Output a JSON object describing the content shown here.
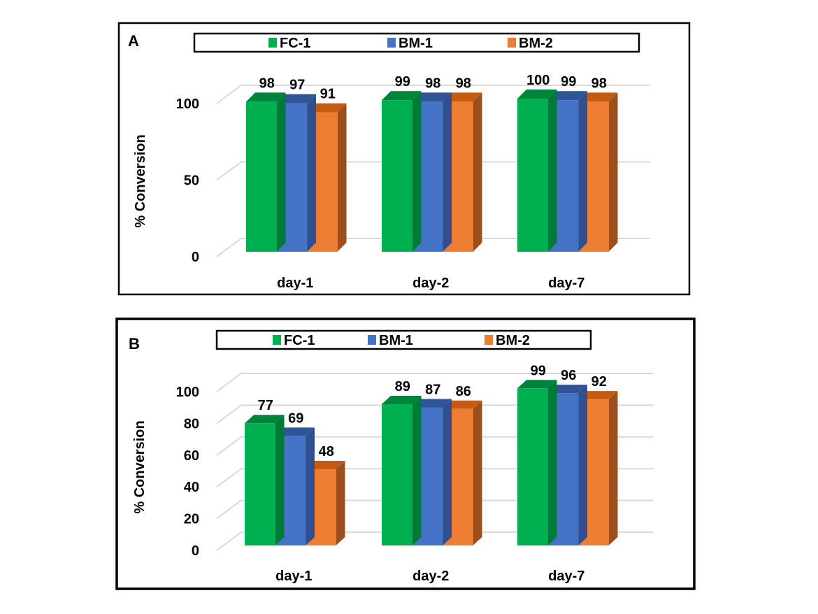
{
  "colors": {
    "FC-1": {
      "front": "#00b050",
      "top": "#00843c",
      "side": "#007a37"
    },
    "BM-1": {
      "front": "#4472c4",
      "top": "#2f5597",
      "side": "#2f4f8f"
    },
    "BM-2": {
      "front": "#ed7d31",
      "top": "#c55a11",
      "side": "#9c4f1c"
    }
  },
  "chart_data": [
    {
      "type": "bar",
      "panel": "A",
      "title": "",
      "xlabel": "",
      "ylabel": "% Conversion",
      "categories": [
        "day-1",
        "day-2",
        "day-7"
      ],
      "series": [
        {
          "name": "FC-1",
          "values": [
            98,
            99,
            100
          ]
        },
        {
          "name": "BM-1",
          "values": [
            97,
            98,
            99
          ]
        },
        {
          "name": "BM-2",
          "values": [
            91,
            98,
            98
          ]
        }
      ],
      "ylim": [
        0,
        100
      ],
      "yticks": [
        0,
        50,
        100
      ],
      "grid": true,
      "legend": {
        "placement": "top",
        "entries": [
          "FC-1",
          "BM-1",
          "BM-2"
        ]
      },
      "style": "3d-clustered-column"
    },
    {
      "type": "bar",
      "panel": "B",
      "title": "",
      "xlabel": "",
      "ylabel": "% Conversion",
      "categories": [
        "day-1",
        "day-2",
        "day-7"
      ],
      "series": [
        {
          "name": "FC-1",
          "values": [
            77,
            89,
            99
          ]
        },
        {
          "name": "BM-1",
          "values": [
            69,
            87,
            96
          ]
        },
        {
          "name": "BM-2",
          "values": [
            48,
            86,
            92
          ]
        }
      ],
      "ylim": [
        0,
        100
      ],
      "yticks": [
        0,
        20,
        40,
        60,
        80,
        100
      ],
      "grid": true,
      "legend": {
        "placement": "top",
        "entries": [
          "FC-1",
          "BM-1",
          "BM-2"
        ]
      },
      "style": "3d-clustered-column"
    }
  ]
}
